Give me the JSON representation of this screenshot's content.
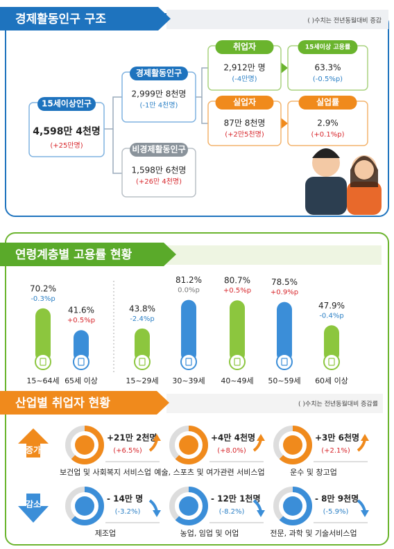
{
  "header": {
    "title": "경제활동인구 구조",
    "note": "( )수치는 전년동월대비 증감"
  },
  "nodes": [
    {
      "label": "15세이상인구",
      "value": "4,598만 4천명",
      "change": "(+25만명)"
    },
    {
      "label": "경제활동인구",
      "value": "2,999만 8천명",
      "change": "(-1만 4천명)"
    },
    {
      "label": "비경제활동인구",
      "value": "1,598만 6천명",
      "change": "(+26만 4천명)"
    },
    {
      "label": "취업자",
      "value": "2,912만 명",
      "change": "(-4만명)"
    },
    {
      "label": "15세이상 고용률",
      "value": "63.3%",
      "change": "(-0.5%p)"
    },
    {
      "label": "실업자",
      "value": "87만 8천명",
      "change": "(+2만5천명)"
    },
    {
      "label": "실업률",
      "value": "2.9%",
      "change": "(+0.1%p)"
    }
  ],
  "chart_data": {
    "type": "bar",
    "title": "연령계층별 고용률 현황",
    "categories": [
      "15~64세",
      "65세 이상",
      "15~29세",
      "30~39세",
      "40~49세",
      "50~59세",
      "60세 이상"
    ],
    "values": [
      70.2,
      41.6,
      43.8,
      81.2,
      80.7,
      78.5,
      47.9
    ],
    "value_labels": [
      "70.2%",
      "41.6%",
      "43.8%",
      "81.2%",
      "80.7%",
      "78.5%",
      "47.9%"
    ],
    "change_labels": [
      "-0.3%p",
      "+0.5%p",
      "-2.4%p",
      "0.0%p",
      "+0.5%p",
      "+0.9%p",
      "-0.4%p"
    ],
    "colors": [
      "#8cc63e",
      "#3b8ed8",
      "#8cc63e",
      "#3b8ed8",
      "#8cc63e",
      "#3b8ed8",
      "#8cc63e"
    ],
    "grid": false
  },
  "industry": {
    "title": "산업별 취업자 현황",
    "note": "( )수치는 전년동월대비 증감률",
    "increase_label": "증가",
    "decrease_label": "감소",
    "items": [
      {
        "name": "보건업 및 사회복지 서비스업",
        "value": "+21만 2천명",
        "change": "(+6.5%)"
      },
      {
        "name": "예술, 스포츠 및 여가관련 서비스업",
        "value": "+4만 4천명",
        "change": "(+8.0%)"
      },
      {
        "name": "운수 및 창고업",
        "value": "+3만 6천명",
        "change": "(+2.1%)"
      },
      {
        "name": "제조업",
        "value": "- 14만 명",
        "change": "(-3.2%)"
      },
      {
        "name": "농업, 임업 및 어업",
        "value": "- 12만 1천명",
        "change": "(-8.2%)"
      },
      {
        "name": "전문, 과학 및 기술서비스업",
        "value": "- 8만 9천명",
        "change": "(-5.9%)"
      }
    ]
  }
}
